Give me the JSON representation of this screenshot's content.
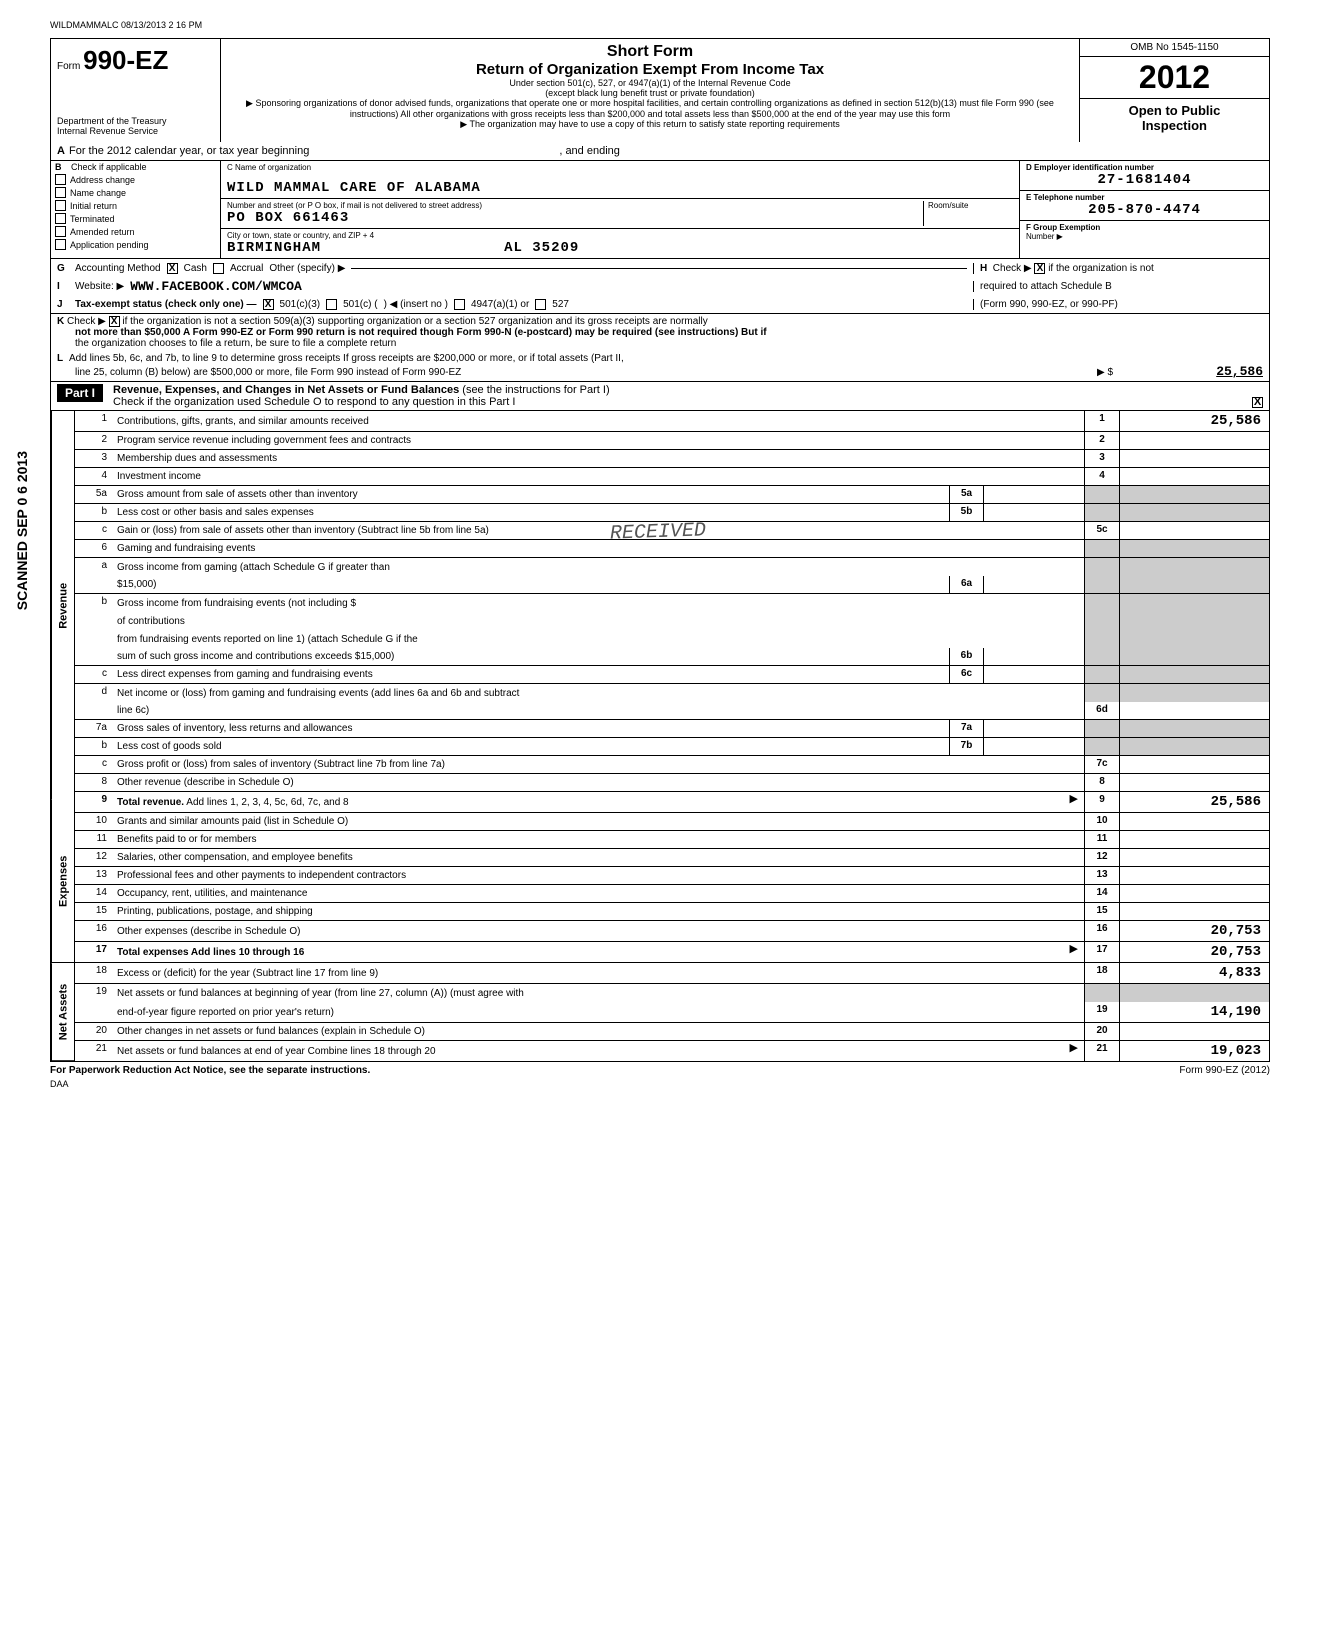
{
  "meta": {
    "topstamp": "WILDMAMMALC 08/13/2013 2 16 PM",
    "form_prefix": "Form",
    "form_number": "990-EZ",
    "short_form": "Short Form",
    "main_title": "Return of Organization Exempt From Income Tax",
    "sub1": "Under section 501(c), 527, or 4947(a)(1) of the Internal Revenue Code",
    "sub2": "(except black lung benefit trust or private foundation)",
    "sub3": "▶ Sponsoring organizations of donor advised funds, organizations that operate one or more hospital facilities, and certain controlling organizations as defined in section 512(b)(13) must file Form 990 (see instructions)  All other organizations with gross receipts less than $200,000 and total assets less than $500,000 at the end of the year may use this form",
    "sub4": "▶ The organization may have to use a copy of this return to satisfy state reporting requirements",
    "omb": "OMB No 1545-1150",
    "year": "2012",
    "open": "Open to Public",
    "inspection": "Inspection",
    "dept": "Department of the Treasury",
    "irs": "Internal Revenue Service"
  },
  "a": {
    "letter": "A",
    "text": "For the 2012 calendar year, or tax year beginning",
    "ending": ", and ending"
  },
  "b": {
    "letter": "B",
    "check_label": "Check if applicable",
    "items": [
      "Address change",
      "Name change",
      "Initial return",
      "Terminated",
      "Amended return",
      "Application pending"
    ],
    "c_label": "C  Name of organization",
    "org_name": "WILD MAMMAL CARE OF ALABAMA",
    "addr_label": "Number and street (or P O  box, if mail is not delivered to street address)",
    "room_label": "Room/suite",
    "addr": "PO BOX 661463",
    "city_label": "City or town, state or country, and ZIP + 4",
    "city": "BIRMINGHAM",
    "state_zip": "AL  35209",
    "d_label": "D  Employer identification number",
    "ein": "27-1681404",
    "e_label": "E  Telephone number",
    "phone": "205-870-4474",
    "f_label": "F  Group Exemption",
    "f_sub": "Number  ▶"
  },
  "g": {
    "letter": "G",
    "label": "Accounting Method",
    "cash": "Cash",
    "accrual": "Accrual",
    "other": "Other (specify) ▶",
    "h_letter": "H",
    "h_text": "Check ▶",
    "h_text2": "if the organization is not",
    "h_text3": "required to attach Schedule B",
    "h_text4": "(Form 990, 990-EZ, or 990-PF)"
  },
  "i": {
    "letter": "I",
    "label": "Website: ▶",
    "value": "WWW.FACEBOOK.COM/WMCOA"
  },
  "j": {
    "letter": "J",
    "label": "Tax-exempt status (check only one) —",
    "opt1": "501(c)(3)",
    "opt2": "501(c) (",
    "insert": ")  ◀ (insert no )",
    "opt3": "4947(a)(1) or",
    "opt4": "527"
  },
  "k": {
    "letter": "K",
    "text1": "Check ▶",
    "text2": "if the organization is not a section 509(a)(3) supporting organization or a section 527 organization and its gross receipts are normally",
    "text3": "not more than $50,000  A Form 990-EZ or Form 990 return is not required though Form 990-N (e-postcard) may be required (see instructions)  But if",
    "text4": "the organization chooses to file a return, be sure to file a complete return"
  },
  "l": {
    "letter": "L",
    "text1": "Add lines 5b, 6c, and 7b, to line 9 to determine gross receipts  If gross receipts are $200,000 or more, or if total assets (Part II,",
    "text2": "line 25, column (B) below) are $500,000 or more, file Form 990 instead of Form 990-EZ",
    "arrow": "▶  $",
    "amount": "25,586"
  },
  "part1": {
    "label": "Part I",
    "title": "Revenue, Expenses, and Changes in Net Assets or Fund Balances",
    "sub": "(see the instructions for Part I)",
    "check": "Check if the organization used Schedule O to respond to any question in this Part I"
  },
  "side": {
    "revenue": "Revenue",
    "expenses": "Expenses",
    "netassets": "Net Assets",
    "scanned": "SCANNED SEP 0 6 2013"
  },
  "lines": {
    "l1": {
      "num": "1",
      "desc": "Contributions, gifts, grants, and similar amounts received",
      "box": "1",
      "amt": "25,586"
    },
    "l2": {
      "num": "2",
      "desc": "Program service revenue including government fees and contracts",
      "box": "2",
      "amt": ""
    },
    "l3": {
      "num": "3",
      "desc": "Membership dues and assessments",
      "box": "3",
      "amt": ""
    },
    "l4": {
      "num": "4",
      "desc": "Investment income",
      "box": "4",
      "amt": ""
    },
    "l5a": {
      "num": "5a",
      "desc": "Gross amount from sale of assets other than inventory",
      "ibox": "5a"
    },
    "l5b": {
      "num": "b",
      "desc": "Less  cost or other basis and sales expenses",
      "ibox": "5b"
    },
    "l5c": {
      "num": "c",
      "desc": "Gain or (loss) from sale of assets other than inventory (Subtract line 5b from line 5a)",
      "box": "5c",
      "amt": ""
    },
    "l6": {
      "num": "6",
      "desc": "Gaming and fundraising events"
    },
    "l6a": {
      "num": "a",
      "desc": "Gross income from gaming (attach Schedule G if greater than",
      "desc2": "$15,000)",
      "ibox": "6a"
    },
    "l6b": {
      "num": "b",
      "desc": "Gross income from fundraising events (not including $",
      "desc2": "of contributions",
      "desc3": "from fundraising events reported on line 1) (attach Schedule G if the",
      "desc4": "sum of such gross income and contributions exceeds $15,000)",
      "ibox": "6b"
    },
    "l6c": {
      "num": "c",
      "desc": "Less  direct expenses from gaming and fundraising events",
      "ibox": "6c"
    },
    "l6d": {
      "num": "d",
      "desc": "Net income or (loss) from gaming and fundraising events (add lines 6a and 6b and subtract",
      "desc2": "line 6c)",
      "box": "6d",
      "amt": ""
    },
    "l7a": {
      "num": "7a",
      "desc": "Gross sales of inventory, less returns and allowances",
      "ibox": "7a"
    },
    "l7b": {
      "num": "b",
      "desc": "Less  cost of goods sold",
      "ibox": "7b"
    },
    "l7c": {
      "num": "c",
      "desc": "Gross profit or (loss) from sales of inventory (Subtract line 7b from line 7a)",
      "box": "7c",
      "amt": ""
    },
    "l8": {
      "num": "8",
      "desc": "Other revenue (describe in Schedule O)",
      "box": "8",
      "amt": ""
    },
    "l9": {
      "num": "9",
      "desc": "Total revenue. Add lines 1, 2, 3, 4, 5c, 6d, 7c, and 8",
      "box": "9",
      "amt": "25,586",
      "bold": true,
      "arrow": true
    },
    "l10": {
      "num": "10",
      "desc": "Grants and similar amounts paid (list in Schedule O)",
      "box": "10",
      "amt": ""
    },
    "l11": {
      "num": "11",
      "desc": "Benefits paid to or for members",
      "box": "11",
      "amt": ""
    },
    "l12": {
      "num": "12",
      "desc": "Salaries, other compensation, and employee benefits",
      "box": "12",
      "amt": ""
    },
    "l13": {
      "num": "13",
      "desc": "Professional fees and other payments to independent contractors",
      "box": "13",
      "amt": ""
    },
    "l14": {
      "num": "14",
      "desc": "Occupancy, rent, utilities, and maintenance",
      "box": "14",
      "amt": ""
    },
    "l15": {
      "num": "15",
      "desc": "Printing, publications, postage, and shipping",
      "box": "15",
      "amt": ""
    },
    "l16": {
      "num": "16",
      "desc": "Other expenses (describe in Schedule O)",
      "box": "16",
      "amt": "20,753"
    },
    "l17": {
      "num": "17",
      "desc": "Total expenses  Add lines 10 through 16",
      "box": "17",
      "amt": "20,753",
      "bold": true,
      "arrow": true
    },
    "l18": {
      "num": "18",
      "desc": "Excess or (deficit) for the year (Subtract line 17 from line 9)",
      "box": "18",
      "amt": "4,833"
    },
    "l19": {
      "num": "19",
      "desc": "Net assets or fund balances at beginning of year (from line 27, column (A)) (must agree with",
      "desc2": "end-of-year figure reported on prior year's return)",
      "box": "19",
      "amt": "14,190"
    },
    "l20": {
      "num": "20",
      "desc": "Other changes in net assets or fund balances (explain in Schedule O)",
      "box": "20",
      "amt": ""
    },
    "l21": {
      "num": "21",
      "desc": "Net assets or fund balances at end of year  Combine lines 18 through 20",
      "box": "21",
      "amt": "19,023",
      "arrow": true
    }
  },
  "footer": {
    "left": "For Paperwork Reduction Act Notice, see the separate instructions.",
    "right": "Form 990-EZ (2012)",
    "daa": "DAA"
  },
  "stamp": "RECEIVED"
}
